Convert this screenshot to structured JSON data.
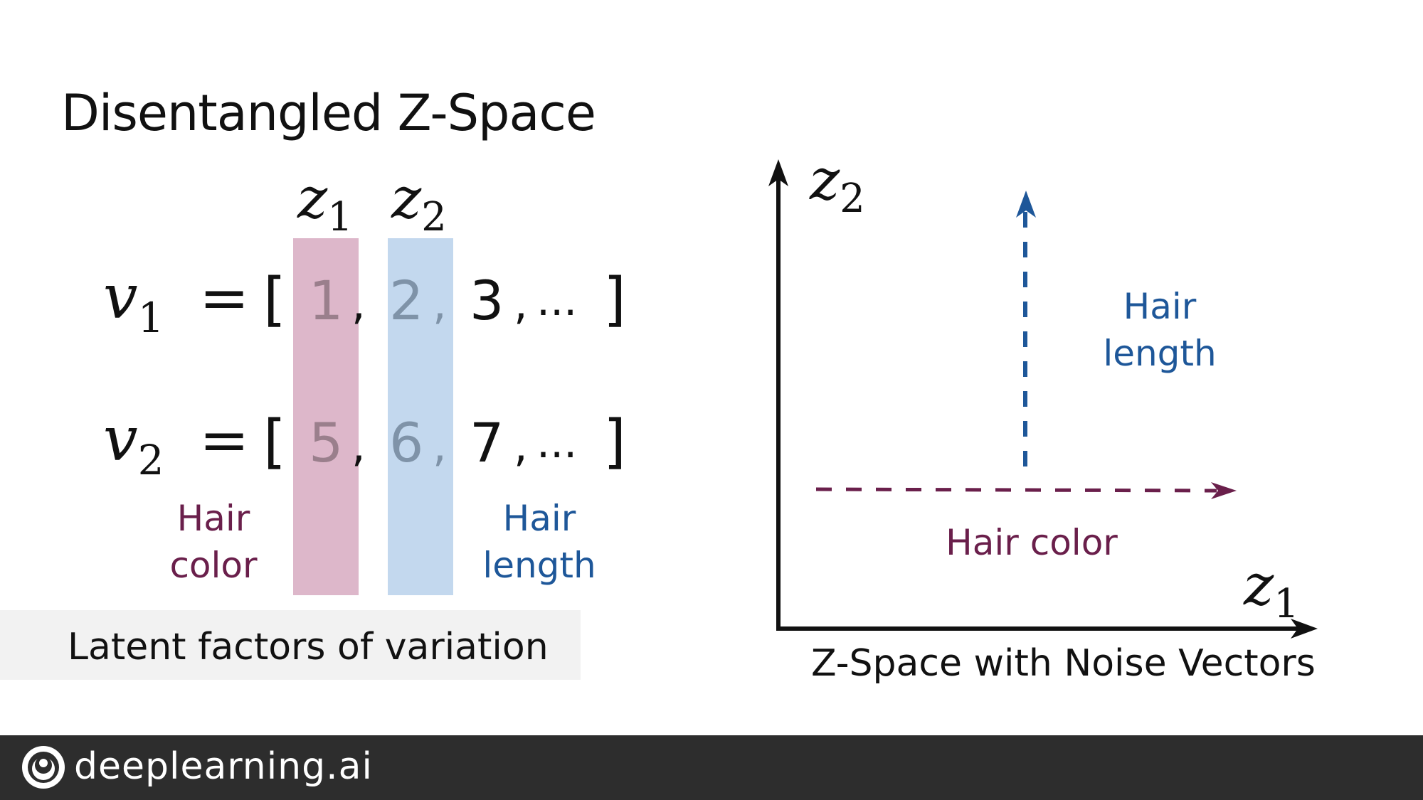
{
  "title": "Disentangled Z-Space",
  "columns": {
    "z1": {
      "base": "z",
      "sub": "1"
    },
    "z2": {
      "base": "z",
      "sub": "2"
    }
  },
  "vectors": [
    {
      "name": "v",
      "sub": "1",
      "values": [
        "1",
        "2",
        "3"
      ],
      "ellipsis": "..."
    },
    {
      "name": "v",
      "sub": "2",
      "values": [
        "5",
        "6",
        "7"
      ],
      "ellipsis": "..."
    }
  ],
  "symbols": {
    "equals": "=",
    "open": "[",
    "close": "]",
    "comma": ","
  },
  "labels": {
    "hair_color": [
      "Hair",
      "color"
    ],
    "hair_length": [
      "Hair",
      "length"
    ]
  },
  "caption_left": "Latent factors of variation",
  "axes": {
    "y": {
      "base": "z",
      "sub": "2"
    },
    "x": {
      "base": "z",
      "sub": "1"
    },
    "arrow_vertical_label": [
      "Hair",
      "length"
    ],
    "arrow_horizontal_label": "Hair color",
    "caption": "Z-Space with Noise Vectors"
  },
  "colors": {
    "maroon": "#6a1f4b",
    "blue": "#1e5799",
    "band_z1": "#ddb7ca",
    "band_z2": "#c3d8ee"
  },
  "footer": {
    "brand": "deeplearning.ai",
    "logo": "deeplearning-logo-icon"
  }
}
